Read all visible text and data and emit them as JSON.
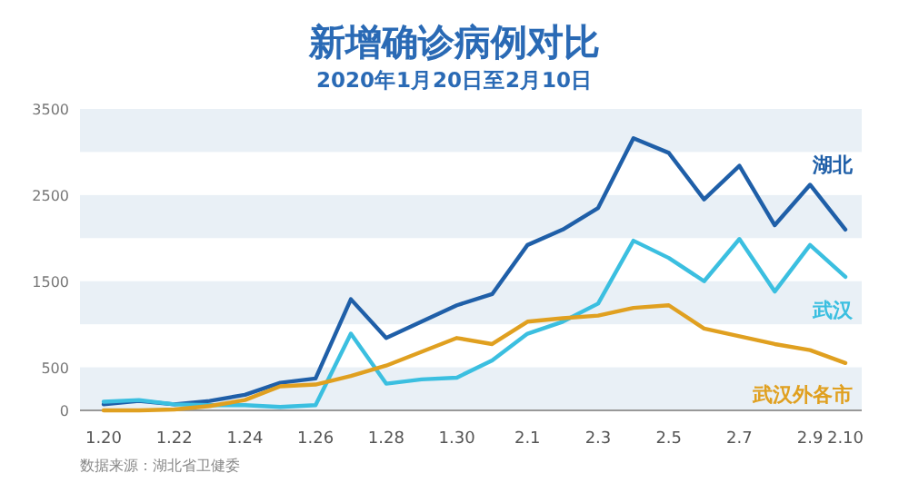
{
  "chart_data": {
    "type": "line",
    "title": "新增确诊病例对比",
    "subtitle": "2020年1月20日至2月10日",
    "categories": [
      "1.20",
      null,
      "1.22",
      null,
      "1.24",
      null,
      "1.26",
      null,
      "1.28",
      null,
      "1.30",
      null,
      "2.1",
      null,
      "2.3",
      null,
      "2.5",
      null,
      "2.7",
      null,
      "2.9",
      "2.10"
    ],
    "series": [
      {
        "name": "湖北",
        "color": "#1f5fa8",
        "values": [
          70,
          110,
          70,
          110,
          180,
          320,
          370,
          1290,
          840,
          1030,
          1220,
          1350,
          1920,
          2100,
          2350,
          3160,
          2990,
          2450,
          2840,
          2150,
          2620,
          2100
        ]
      },
      {
        "name": "武汉",
        "color": "#3bbfe0",
        "values": [
          100,
          120,
          70,
          60,
          60,
          40,
          60,
          890,
          310,
          360,
          380,
          580,
          890,
          1030,
          1240,
          1970,
          1770,
          1500,
          1990,
          1380,
          1920,
          1550
        ]
      },
      {
        "name": "武汉外各市",
        "color": "#e0a020",
        "values": [
          0,
          0,
          10,
          50,
          120,
          280,
          300,
          400,
          520,
          680,
          840,
          770,
          1030,
          1070,
          1100,
          1190,
          1220,
          950,
          860,
          770,
          700,
          550
        ]
      }
    ],
    "ylim": [
      0,
      3500
    ],
    "yticks": [
      0,
      500,
      1500,
      2500,
      3500
    ],
    "bands": [
      {
        "axis": "y",
        "from": 0,
        "to": 500,
        "color": "#e9f0f6"
      },
      {
        "axis": "y",
        "from": 1000,
        "to": 1500,
        "color": "#e9f0f6"
      },
      {
        "axis": "y",
        "from": 2000,
        "to": 2500,
        "color": "#e9f0f6"
      },
      {
        "axis": "y",
        "from": 3000,
        "to": 3500,
        "color": "#e9f0f6"
      }
    ],
    "legend": false,
    "grid": false,
    "annotations": [
      "数据来源：湖北省卫健委"
    ]
  }
}
